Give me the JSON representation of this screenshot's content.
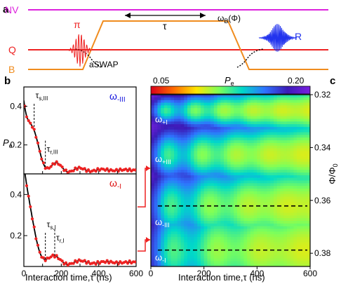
{
  "panel_labels": {
    "a": "a",
    "b": "b",
    "c": "c"
  },
  "schematic": {
    "lines": [
      {
        "label": "NV",
        "color": "#dd22dd"
      },
      {
        "label": "Q",
        "color": "#ee2222"
      },
      {
        "label": "B",
        "color": "#f08c1e"
      }
    ],
    "pulse_pi": "π",
    "pulse_r": "R",
    "tau": "τ",
    "flux_label": "ω",
    "flux_sub": "B",
    "flux_arg": "(Φ)",
    "aswap": "aSWAP"
  },
  "colorbar": {
    "label": "P",
    "label_sub": "e",
    "min_label": "0.05",
    "max_label": "0.20",
    "colors": [
      "#d9001c",
      "#ff6a00",
      "#ffe600",
      "#7dff5a",
      "#00d9c8",
      "#2e74ff",
      "#3b1cb8",
      "#7a1fe0"
    ]
  },
  "chart_data": [
    {
      "type": "line",
      "panel": "b-top",
      "title": "",
      "xlabel": "",
      "ylabel": "P",
      "ylabel_sub": "e",
      "xlim": [
        0,
        600
      ],
      "ylim": [
        0.05,
        0.5
      ],
      "yticks": [
        "0.2",
        "0.4"
      ],
      "ytick_values": [
        0.2,
        0.4
      ],
      "legend": {
        "text": "ω",
        "sub": "-III",
        "color": "#1111dd"
      },
      "markers": [
        {
          "text": "τ",
          "sub": "s,III",
          "x": 55
        },
        {
          "text": "τ",
          "sub": "r,III",
          "x": 115
        }
      ],
      "model": {
        "baseline": 0.07,
        "amp": 0.44,
        "tau": 52,
        "freq_period": 120,
        "osc_amp": 0.08,
        "osc_decay": 140,
        "phase": 60
      },
      "points_x": [
        5,
        15,
        25,
        35,
        45,
        55,
        65,
        75,
        85,
        95,
        105,
        115,
        125,
        135,
        145,
        155,
        165,
        175,
        185,
        195,
        205,
        215,
        225,
        235,
        245,
        255,
        265,
        275,
        285,
        295,
        305,
        315,
        325,
        335,
        345,
        355,
        365,
        375,
        385,
        395,
        405,
        415,
        425,
        435,
        445,
        455,
        465,
        475,
        485,
        495,
        505,
        515,
        525,
        535,
        545,
        555,
        565,
        575,
        585,
        595
      ]
    },
    {
      "type": "line",
      "panel": "b-bottom",
      "title": "",
      "xlabel": "Interaction time,τ (ns)",
      "ylabel": "",
      "xlim": [
        0,
        600
      ],
      "ylim": [
        0.05,
        0.5
      ],
      "xticks": [
        "0",
        "200",
        "400",
        "600"
      ],
      "xtick_values": [
        0,
        200,
        400,
        600
      ],
      "yticks": [
        "0.2",
        "0.4"
      ],
      "ytick_values": [
        0.2,
        0.4
      ],
      "legend": {
        "text": "ω",
        "sub": "-I",
        "color": "#dd1111"
      },
      "markers": [
        {
          "text": "τ",
          "sub": "s,I",
          "x": 115
        },
        {
          "text": "τ",
          "sub": "r,I",
          "x": 165
        }
      ],
      "model": {
        "baseline": 0.07,
        "amp": 0.48,
        "tau": 45,
        "freq_period": 135,
        "osc_amp": 0.06,
        "osc_decay": 150,
        "phase": 35
      },
      "points_x": [
        5,
        15,
        25,
        35,
        45,
        55,
        65,
        75,
        85,
        95,
        105,
        115,
        125,
        135,
        145,
        155,
        165,
        175,
        185,
        195,
        205,
        215,
        225,
        235,
        245,
        255,
        265,
        275,
        285,
        295,
        305,
        315,
        325,
        335,
        345,
        355,
        365,
        375,
        385,
        395,
        405,
        415,
        425,
        435,
        445,
        455,
        465,
        475,
        485,
        495,
        505,
        515,
        525,
        535,
        545,
        555,
        565,
        575,
        585,
        595
      ]
    },
    {
      "type": "heatmap",
      "panel": "c",
      "title": "",
      "xlabel": "Interaction time,τ (ns)",
      "ylabel": "Φ/Φ",
      "ylabel_sub": "0",
      "xlim": [
        0,
        600
      ],
      "ylim": [
        0.32,
        0.385
      ],
      "xticks": [
        "0",
        "200",
        "400",
        "600"
      ],
      "xtick_values": [
        0,
        200,
        400,
        600
      ],
      "yticks": [
        "0.32",
        "0.34",
        "0.36",
        "0.38"
      ],
      "ytick_values": [
        0.32,
        0.34,
        0.36,
        0.38
      ],
      "dashed_lines": [
        0.3621,
        0.3788
      ],
      "labels": [
        {
          "text": "ω",
          "sub": "+I",
          "x": 5,
          "y": 0.3305
        },
        {
          "text": "ω",
          "sub": "+III",
          "x": 5,
          "y": 0.3455
        },
        {
          "text": "ω",
          "sub": "-III",
          "x": 5,
          "y": 0.3693
        },
        {
          "text": "ω",
          "sub": "-I",
          "x": 5,
          "y": 0.3828
        }
      ],
      "resonances": [
        0.326,
        0.3427,
        0.3621,
        0.3788
      ]
    }
  ]
}
